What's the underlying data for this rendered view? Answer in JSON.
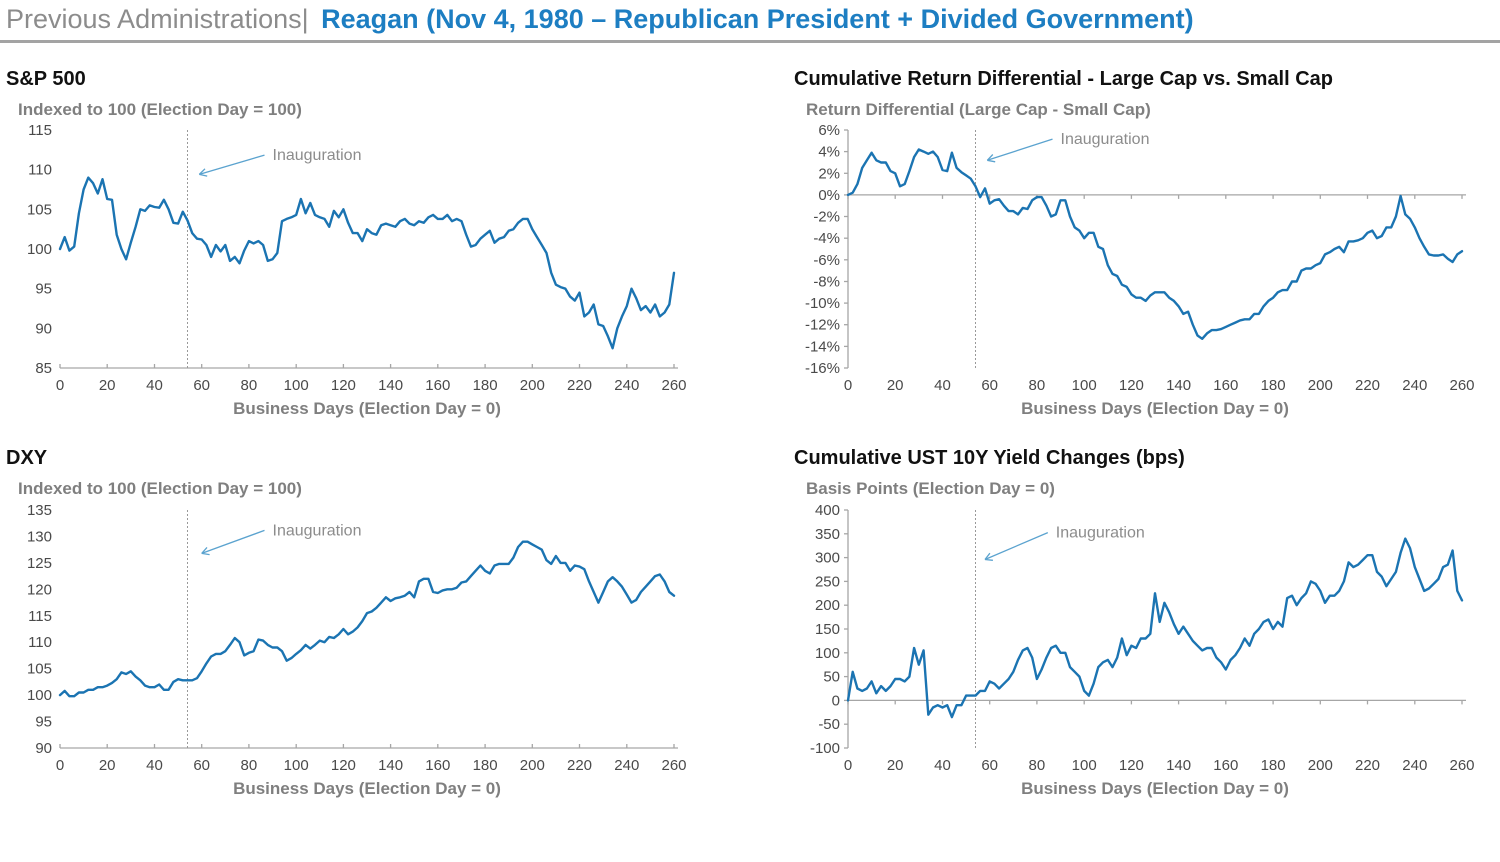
{
  "header": {
    "prefix": "Previous Administrations|",
    "title": "Reagan (Nov 4, 1980 – Republican President + Divided Government)"
  },
  "annotation_label": "Inauguration",
  "colors": {
    "line": "#1b74b2",
    "header_blue": "#1d7ec2",
    "arrow_blue": "#5ba3cf",
    "dashed_line": "#999999",
    "axis_gray": "#a6a6a6",
    "subtitle_gray": "#7f7f7f"
  },
  "x_days": [
    0,
    2,
    4,
    6,
    8,
    10,
    12,
    14,
    16,
    18,
    20,
    22,
    24,
    26,
    28,
    30,
    32,
    34,
    36,
    38,
    40,
    42,
    44,
    46,
    48,
    50,
    52,
    54,
    56,
    58,
    60,
    62,
    64,
    66,
    68,
    70,
    72,
    74,
    76,
    78,
    80,
    82,
    84,
    86,
    88,
    90,
    92,
    94,
    96,
    98,
    100,
    102,
    104,
    106,
    108,
    110,
    112,
    114,
    116,
    118,
    120,
    122,
    124,
    126,
    128,
    130,
    132,
    134,
    136,
    138,
    140,
    142,
    144,
    146,
    148,
    150,
    152,
    154,
    156,
    158,
    160,
    162,
    164,
    166,
    168,
    170,
    172,
    174,
    176,
    178,
    180,
    182,
    184,
    186,
    188,
    190,
    192,
    194,
    196,
    198,
    200,
    202,
    204,
    206,
    208,
    210,
    212,
    214,
    216,
    218,
    220,
    222,
    224,
    226,
    228,
    230,
    232,
    234,
    236,
    238,
    240,
    242,
    244,
    246,
    248,
    250,
    252,
    254,
    256,
    258,
    260
  ],
  "chart_data": [
    {
      "type": "line",
      "title": "S&P 500",
      "subtitle": "Indexed to 100 (Election Day = 100)",
      "xlabel": "Business Days (Election Day = 0)",
      "xlim": [
        0,
        260
      ],
      "xticks": [
        0,
        20,
        40,
        60,
        80,
        100,
        120,
        140,
        160,
        180,
        200,
        220,
        240,
        260
      ],
      "ylim": [
        85,
        115
      ],
      "yticks": [
        115,
        110,
        105,
        100,
        95,
        90,
        85
      ],
      "ysuffix": "",
      "axis_y": 85,
      "yaxis_line": false,
      "ann": {
        "x": 54,
        "label_xy": [
          90,
          111.2
        ],
        "tip_xy": [
          59,
          109.4
        ]
      },
      "y": [
        100,
        101.5,
        99.8,
        100.3,
        104.5,
        107.5,
        109,
        108.3,
        107,
        108.8,
        106.3,
        106.2,
        101.8,
        100,
        98.7,
        100.8,
        102.8,
        105,
        104.8,
        105.5,
        105.3,
        105.2,
        106.2,
        105,
        103.3,
        103.2,
        104.7,
        103.6,
        102,
        101.3,
        101.2,
        100.5,
        99,
        100.5,
        99.7,
        100.5,
        98.5,
        99,
        98.2,
        99.8,
        101,
        100.7,
        101,
        100.5,
        98.5,
        98.7,
        99.5,
        103.5,
        103.8,
        104,
        104.3,
        106.3,
        104.5,
        105.8,
        104.3,
        104,
        103.8,
        102.8,
        104.8,
        104,
        105,
        103.3,
        102,
        102,
        101,
        102.5,
        102,
        101.8,
        103,
        103.2,
        103,
        102.8,
        103.5,
        103.8,
        103.2,
        103,
        103.5,
        103.3,
        104,
        104.3,
        103.8,
        103.8,
        104.3,
        103.5,
        103.8,
        103.5,
        101.8,
        100.3,
        100.5,
        101.3,
        101.8,
        102.3,
        100.8,
        101.3,
        101.5,
        102.3,
        102.5,
        103.3,
        103.8,
        103.8,
        102.5,
        101.5,
        100.5,
        99.5,
        97,
        95.5,
        95.2,
        95,
        94,
        93.5,
        94.5,
        91.5,
        92,
        93,
        90.5,
        90.3,
        89,
        87.5,
        90,
        91.5,
        92.8,
        95,
        93.8,
        92.3,
        92.8,
        92,
        93,
        91.5,
        92,
        93,
        97
      ]
    },
    {
      "type": "line",
      "title": "Cumulative Return Differential - Large Cap vs. Small Cap",
      "subtitle": "Return Differential (Large Cap - Small Cap)",
      "xlabel": "Business Days (Election Day = 0)",
      "xlim": [
        0,
        260
      ],
      "xticks": [
        0,
        20,
        40,
        60,
        80,
        100,
        120,
        140,
        160,
        180,
        200,
        220,
        240,
        260
      ],
      "ylim": [
        -16,
        6
      ],
      "yticks": [
        6,
        4,
        2,
        0,
        -2,
        -4,
        -6,
        -8,
        -10,
        -12,
        -14,
        -16
      ],
      "ysuffix": "%",
      "axis_y": 0,
      "yaxis_line": true,
      "ann": {
        "x": 54,
        "label_xy": [
          90,
          4.7
        ],
        "tip_xy": [
          59,
          3.2
        ]
      },
      "y": [
        0,
        0.2,
        1,
        2.5,
        3.2,
        3.9,
        3.2,
        3,
        3,
        2.2,
        2,
        0.8,
        1,
        2.2,
        3.5,
        4.2,
        4,
        3.8,
        4,
        3.5,
        2.3,
        2.2,
        3.9,
        2.5,
        2.1,
        1.8,
        1.5,
        0.8,
        -0.2,
        0.6,
        -0.8,
        -0.5,
        -0.4,
        -1,
        -1.5,
        -1.5,
        -1.8,
        -1.2,
        -1.3,
        -0.5,
        -0.2,
        -0.2,
        -1,
        -2,
        -1.8,
        -0.5,
        -0.5,
        -2,
        -3,
        -3.3,
        -4,
        -3.5,
        -3.5,
        -4.8,
        -5,
        -6.5,
        -7.3,
        -7.5,
        -8.3,
        -8.5,
        -9.2,
        -9.5,
        -9.5,
        -9.8,
        -9.3,
        -9,
        -9,
        -9,
        -9.5,
        -9.8,
        -10.3,
        -11,
        -10.8,
        -12,
        -13,
        -13.3,
        -12.8,
        -12.5,
        -12.5,
        -12.4,
        -12.2,
        -12,
        -11.8,
        -11.6,
        -11.5,
        -11.5,
        -11,
        -11,
        -10.3,
        -9.8,
        -9.5,
        -9,
        -8.8,
        -8.8,
        -8,
        -8,
        -7,
        -6.8,
        -6.8,
        -6.5,
        -6.3,
        -5.5,
        -5.3,
        -5,
        -4.8,
        -5.3,
        -4.3,
        -4.3,
        -4.2,
        -4,
        -3.5,
        -3.3,
        -4,
        -3.8,
        -3,
        -3,
        -2,
        -0.1,
        -1.8,
        -2.2,
        -3,
        -4,
        -4.8,
        -5.5,
        -5.6,
        -5.6,
        -5.5,
        -5.9,
        -6.2,
        -5.5,
        -5.2
      ]
    },
    {
      "type": "line",
      "title": "DXY",
      "subtitle": "Indexed to 100 (Election Day = 100)",
      "xlabel": "Business Days (Election Day = 0)",
      "xlim": [
        0,
        260
      ],
      "xticks": [
        0,
        20,
        40,
        60,
        80,
        100,
        120,
        140,
        160,
        180,
        200,
        220,
        240,
        260
      ],
      "ylim": [
        90,
        135
      ],
      "yticks": [
        135,
        130,
        125,
        120,
        115,
        110,
        105,
        100,
        95,
        90
      ],
      "ysuffix": "",
      "axis_y": 90,
      "yaxis_line": false,
      "ann": {
        "x": 54,
        "label_xy": [
          90,
          130.2
        ],
        "tip_xy": [
          60,
          126.8
        ]
      },
      "y": [
        100,
        100.8,
        99.8,
        99.8,
        100.5,
        100.5,
        101,
        101,
        101.5,
        101.5,
        101.8,
        102.3,
        103,
        104.3,
        104,
        104.5,
        103.5,
        102.8,
        101.8,
        101.5,
        101.5,
        102,
        101,
        101,
        102.5,
        103,
        102.8,
        102.8,
        102.8,
        103.2,
        104.5,
        106,
        107.3,
        107.8,
        107.8,
        108.3,
        109.5,
        110.8,
        110,
        107.5,
        108,
        108.3,
        110.5,
        110.3,
        109.5,
        109,
        109,
        108.3,
        106.5,
        107,
        107.8,
        108.5,
        109.5,
        108.8,
        109.5,
        110.3,
        110,
        111,
        110.8,
        111.5,
        112.5,
        111.5,
        112,
        112.8,
        114,
        115.5,
        115.8,
        116.5,
        117.5,
        118.5,
        117.8,
        118.3,
        118.5,
        118.8,
        119.5,
        118.5,
        121.5,
        122,
        122,
        119.5,
        119.3,
        119.8,
        120,
        120,
        120.3,
        121.3,
        121.5,
        122.5,
        123.5,
        124.5,
        123.5,
        123,
        124.5,
        124.8,
        124.8,
        124.8,
        126,
        128,
        129,
        129,
        128.5,
        128,
        127.5,
        125.5,
        124.8,
        126.3,
        125,
        125,
        123.5,
        124.5,
        124.3,
        123.8,
        121.5,
        119.5,
        117.5,
        119.5,
        121.5,
        122.3,
        121.5,
        120.5,
        119,
        117.5,
        118,
        119.5,
        120.5,
        121.5,
        122.5,
        122.8,
        121.5,
        119.5,
        118.8
      ]
    },
    {
      "type": "line",
      "title": "Cumulative UST 10Y Yield Changes (bps)",
      "subtitle": "Basis Points (Election Day = 0)",
      "xlabel": "Business Days (Election Day = 0)",
      "xlim": [
        0,
        260
      ],
      "xticks": [
        0,
        20,
        40,
        60,
        80,
        100,
        120,
        140,
        160,
        180,
        200,
        220,
        240,
        260
      ],
      "ylim": [
        -100,
        400
      ],
      "yticks": [
        400,
        350,
        300,
        250,
        200,
        150,
        100,
        50,
        0,
        -50,
        -100
      ],
      "ysuffix": "",
      "axis_y": 0,
      "yaxis_line": true,
      "ann": {
        "x": 54,
        "label_xy": [
          88,
          342
        ],
        "tip_xy": [
          58,
          296
        ]
      },
      "y": [
        0,
        60,
        25,
        20,
        25,
        40,
        15,
        30,
        20,
        30,
        45,
        45,
        40,
        50,
        110,
        75,
        105,
        -30,
        -15,
        -10,
        -15,
        -10,
        -35,
        -10,
        -10,
        10,
        10,
        10,
        20,
        20,
        40,
        35,
        25,
        35,
        45,
        60,
        85,
        105,
        110,
        90,
        45,
        65,
        90,
        110,
        115,
        100,
        100,
        70,
        60,
        50,
        20,
        10,
        35,
        70,
        80,
        85,
        70,
        90,
        130,
        95,
        115,
        110,
        130,
        130,
        140,
        225,
        165,
        205,
        185,
        160,
        140,
        155,
        140,
        125,
        115,
        105,
        110,
        110,
        90,
        80,
        65,
        85,
        95,
        110,
        130,
        115,
        140,
        150,
        165,
        170,
        150,
        165,
        155,
        215,
        220,
        200,
        215,
        225,
        250,
        245,
        230,
        205,
        220,
        220,
        230,
        250,
        290,
        280,
        285,
        295,
        305,
        305,
        270,
        260,
        240,
        255,
        270,
        310,
        340,
        320,
        280,
        255,
        230,
        235,
        245,
        255,
        280,
        285,
        315,
        230,
        210
      ]
    }
  ]
}
